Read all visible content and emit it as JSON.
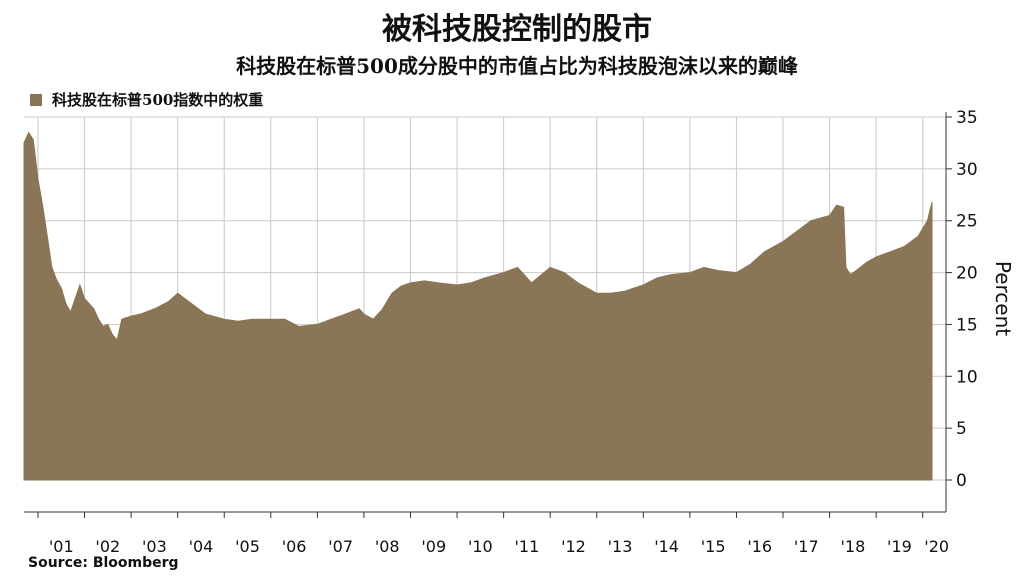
{
  "colors": {
    "fill": "#8a7556",
    "grid": "#c9c9c9",
    "axis": "#333333",
    "text": "#111111"
  },
  "title": "被科技股控制的股市",
  "subtitle": "科技股在标普500成分股中的市值占比为科技股泡沫以来的巅峰",
  "source": "Source: Bloomberg",
  "chart_data": {
    "type": "area",
    "ylabel": "Percent",
    "ylim": [
      0,
      35
    ],
    "yticks": [
      0,
      5,
      10,
      15,
      20,
      25,
      30,
      35
    ],
    "xlim": [
      2000.7,
      2020.5
    ],
    "xticks": [
      {
        "label": "'01",
        "value": 2001.5
      },
      {
        "label": "'02",
        "value": 2002.5
      },
      {
        "label": "'03",
        "value": 2003.5
      },
      {
        "label": "'04",
        "value": 2004.5
      },
      {
        "label": "'05",
        "value": 2005.5
      },
      {
        "label": "'06",
        "value": 2006.5
      },
      {
        "label": "'07",
        "value": 2007.5
      },
      {
        "label": "'08",
        "value": 2008.5
      },
      {
        "label": "'09",
        "value": 2009.5
      },
      {
        "label": "'10",
        "value": 2010.5
      },
      {
        "label": "'11",
        "value": 2011.5
      },
      {
        "label": "'12",
        "value": 2012.5
      },
      {
        "label": "'13",
        "value": 2013.5
      },
      {
        "label": "'14",
        "value": 2014.5
      },
      {
        "label": "'15",
        "value": 2015.5
      },
      {
        "label": "'16",
        "value": 2016.5
      },
      {
        "label": "'17",
        "value": 2017.5
      },
      {
        "label": "'18",
        "value": 2018.5
      },
      {
        "label": "'19",
        "value": 2019.5
      },
      {
        "label": "'20",
        "value": 2020.3
      }
    ],
    "series": [
      {
        "name": "科技股在标普500指数中的权重",
        "x": [
          2000.7,
          2000.8,
          2000.9,
          2001.0,
          2001.1,
          2001.2,
          2001.3,
          2001.4,
          2001.5,
          2001.6,
          2001.7,
          2001.8,
          2001.9,
          2002.0,
          2002.1,
          2002.2,
          2002.3,
          2002.4,
          2002.5,
          2002.6,
          2002.7,
          2002.8,
          2003.0,
          2003.2,
          2003.5,
          2003.8,
          2004.0,
          2004.3,
          2004.6,
          2005.0,
          2005.3,
          2005.6,
          2006.0,
          2006.3,
          2006.6,
          2007.0,
          2007.3,
          2007.6,
          2007.9,
          2008.0,
          2008.2,
          2008.4,
          2008.6,
          2008.8,
          2009.0,
          2009.3,
          2009.6,
          2010.0,
          2010.3,
          2010.6,
          2011.0,
          2011.3,
          2011.6,
          2012.0,
          2012.3,
          2012.6,
          2013.0,
          2013.3,
          2013.6,
          2014.0,
          2014.3,
          2014.6,
          2015.0,
          2015.3,
          2015.6,
          2016.0,
          2016.3,
          2016.6,
          2017.0,
          2017.3,
          2017.6,
          2018.0,
          2018.15,
          2018.3,
          2018.35,
          2018.45,
          2018.6,
          2018.8,
          2019.0,
          2019.3,
          2019.6,
          2019.9,
          2020.1,
          2020.2
        ],
        "values": [
          32.5,
          33.5,
          32.8,
          29.0,
          26.5,
          23.5,
          20.5,
          19.3,
          18.5,
          17.0,
          16.2,
          17.5,
          18.8,
          17.5,
          17.0,
          16.5,
          15.5,
          14.8,
          15.0,
          14.0,
          13.5,
          15.5,
          15.8,
          16.0,
          16.5,
          17.2,
          18.0,
          17.0,
          16.0,
          15.5,
          15.3,
          15.5,
          15.5,
          15.5,
          14.8,
          15.0,
          15.5,
          16.0,
          16.5,
          16.0,
          15.5,
          16.5,
          18.0,
          18.7,
          19.0,
          19.2,
          19.0,
          18.8,
          19.0,
          19.5,
          20.0,
          20.5,
          19.0,
          20.5,
          20.0,
          19.0,
          18.0,
          18.0,
          18.2,
          18.8,
          19.5,
          19.8,
          20.0,
          20.5,
          20.2,
          20.0,
          20.8,
          22.0,
          23.0,
          24.0,
          25.0,
          25.5,
          26.5,
          26.3,
          20.5,
          19.8,
          20.3,
          21.0,
          21.5,
          22.0,
          22.5,
          23.5,
          25.0,
          26.8
        ]
      }
    ]
  }
}
